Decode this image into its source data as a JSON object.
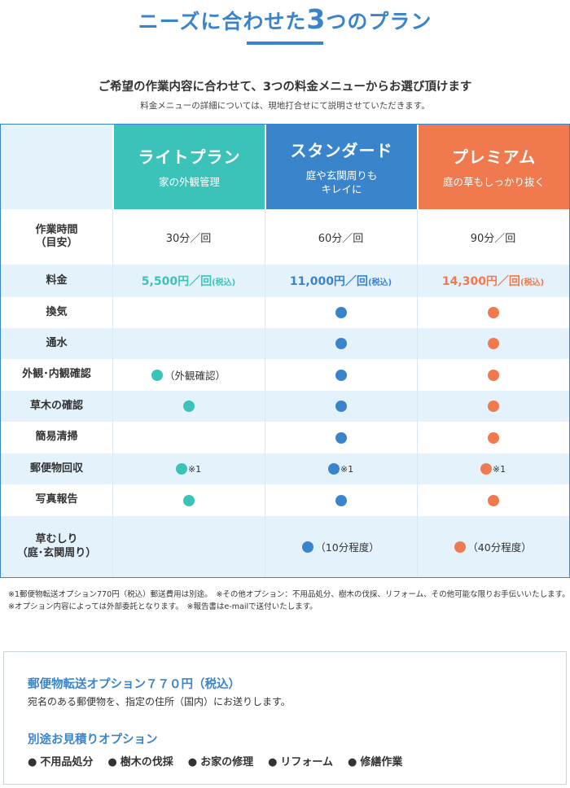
{
  "heading": {
    "title_pre": "ニーズに合わせた",
    "title_num": "3",
    "title_post": "つのプラン"
  },
  "intro": {
    "lead": "ご希望の作業内容に合わせて、3つの料金メニューからお選び頂けます",
    "sub": "料金メニューの詳細については、現地打合せにて説明させていただきます。"
  },
  "plans": [
    {
      "name": "ライトプラン",
      "desc": "家の外観管理",
      "color": "#3cc3b9"
    },
    {
      "name": "スタンダード",
      "desc": "庭や玄関周りも\nキレイに",
      "color": "#3a84cc"
    },
    {
      "name": "プレミアム",
      "desc": "庭の草もしっかり抜く",
      "color": "#f07a4e"
    }
  ],
  "rows": {
    "time": {
      "label": "作業時間\n（目安）",
      "v1": "30分／回",
      "v2": "60分／回",
      "v3": "90分／回"
    },
    "price": {
      "label": "料金",
      "v1": "5,500円／回",
      "v2": "11,000円／回",
      "v3": "14,300円／回",
      "tax": "(税込)"
    },
    "kanki": {
      "label": "換気"
    },
    "tsusui": {
      "label": "通水"
    },
    "gaikan": {
      "label": "外観･内観確認",
      "v1_note": "（外観確認）"
    },
    "somoku": {
      "label": "草木の確認"
    },
    "seiso": {
      "label": "簡易清掃"
    },
    "yubin": {
      "label": "郵便物回収",
      "note": "※1"
    },
    "shashin": {
      "label": "写真報告"
    },
    "kusamushiri": {
      "label": "草むしり\n（庭･玄関周り）",
      "v2_note": "（10分程度）",
      "v3_note": "（40分程度）"
    }
  },
  "footnote": "※1郵便物転送オプション770円（税込）郵送費用は別途。　※その他オプション：不用品処分、樹木の伐採、リフォーム、その他可能な限りお手伝いいたします。　※オプション内容によっては外部委託となります。　※報告書はe-mailで送付いたします。",
  "options": {
    "transfer_title": "郵便物転送オプション７７０円（税込）",
    "transfer_desc": "宛名のある郵便物を、指定の住所（国内）にお送りします。",
    "estimate_title": "別途お見積りオプション",
    "items": [
      "不用品処分",
      "樹木の伐採",
      "お家の修理",
      "リフォーム",
      "修繕作業"
    ]
  }
}
